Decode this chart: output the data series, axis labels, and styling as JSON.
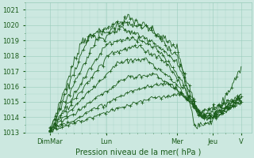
{
  "xlabel": "Pression niveau de la mer( hPa )",
  "ylim": [
    1013,
    1021.5
  ],
  "xlim": [
    0,
    320
  ],
  "yticks": [
    1013,
    1014,
    1015,
    1016,
    1017,
    1018,
    1019,
    1020,
    1021
  ],
  "xtick_labels": [
    "DimMar",
    "Lun",
    "Mer",
    "Jeu",
    "V"
  ],
  "xtick_positions": [
    35,
    115,
    215,
    265,
    305
  ],
  "bg_color": "#cce8e0",
  "plot_bg_color": "#cce8e0",
  "line_color": "#1a5c1a",
  "grid_color": "#99ccbb",
  "font_color": "#1a5c1a",
  "xlabel_fontsize": 7,
  "tick_fontsize": 6
}
